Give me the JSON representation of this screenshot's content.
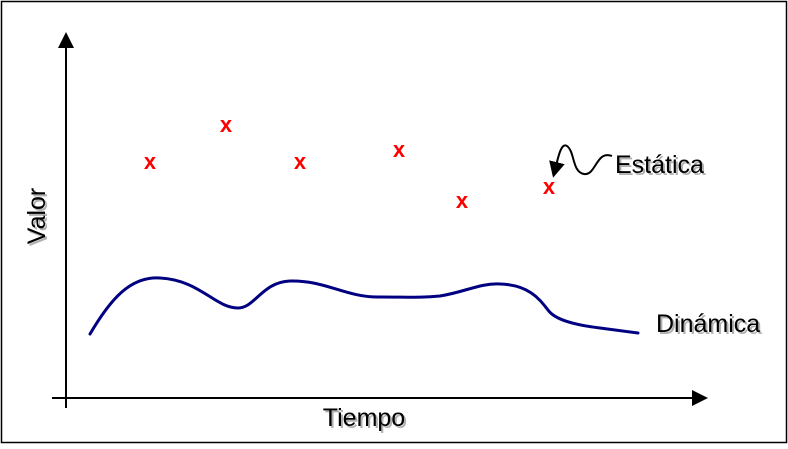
{
  "axes": {
    "x_label": "Tiempo",
    "y_label": "Valor"
  },
  "marker_glyph": "x",
  "labels": {
    "static": "Estática",
    "dynamic": "Dinámica"
  },
  "colors": {
    "marker": "#ff0000",
    "curve": "#000080",
    "axis": "#000000",
    "border": "#000000",
    "label_shadow": "#b0b0b0"
  }
}
